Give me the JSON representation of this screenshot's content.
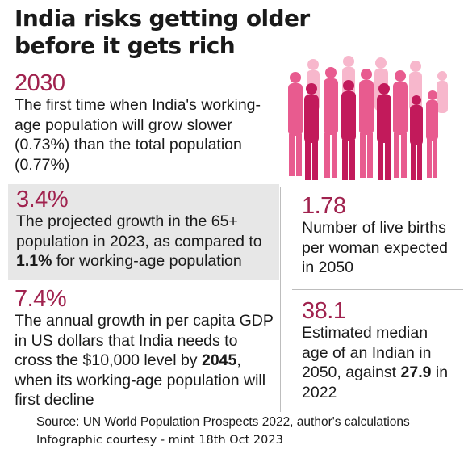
{
  "title": "India risks getting older before it gets rich",
  "blocks": {
    "b1": {
      "stat": "2030",
      "text": "The first time when India's working-age population will grow slower (0.73%) than the total population (0.77%)"
    },
    "b2": {
      "stat": "3.4%",
      "text_pre": "The projected growth in the 65+ population in 2023, as compared to ",
      "text_bold": "1.1%",
      "text_post": " for working-age population"
    },
    "b3": {
      "stat": "7.4%",
      "text_pre": "The annual growth in per capita GDP in US dollars that India needs to cross the $10,000 level by ",
      "text_bold": "2045",
      "text_post": ", when its working-age population will first decline"
    },
    "b4": {
      "stat": "1.78",
      "text": "Number of live births per woman expected in 2050"
    },
    "b5": {
      "stat": "38.1",
      "text_pre": "Estimated median age of an Indian in 2050, against ",
      "text_bold": "27.9",
      "text_post": " in 2022"
    }
  },
  "source": "Source: UN World Population Prospects 2022, author's calculations",
  "credit": "Infographic courtesy - mint 18th Oct 2023",
  "colors": {
    "accent": "#a0224e",
    "people_light": "#f7b7cc",
    "people_mid": "#e85b8f",
    "people_dark": "#c21a5b",
    "panel": "#e7e7e7"
  },
  "illustration": "crowd-of-people-silhouettes"
}
